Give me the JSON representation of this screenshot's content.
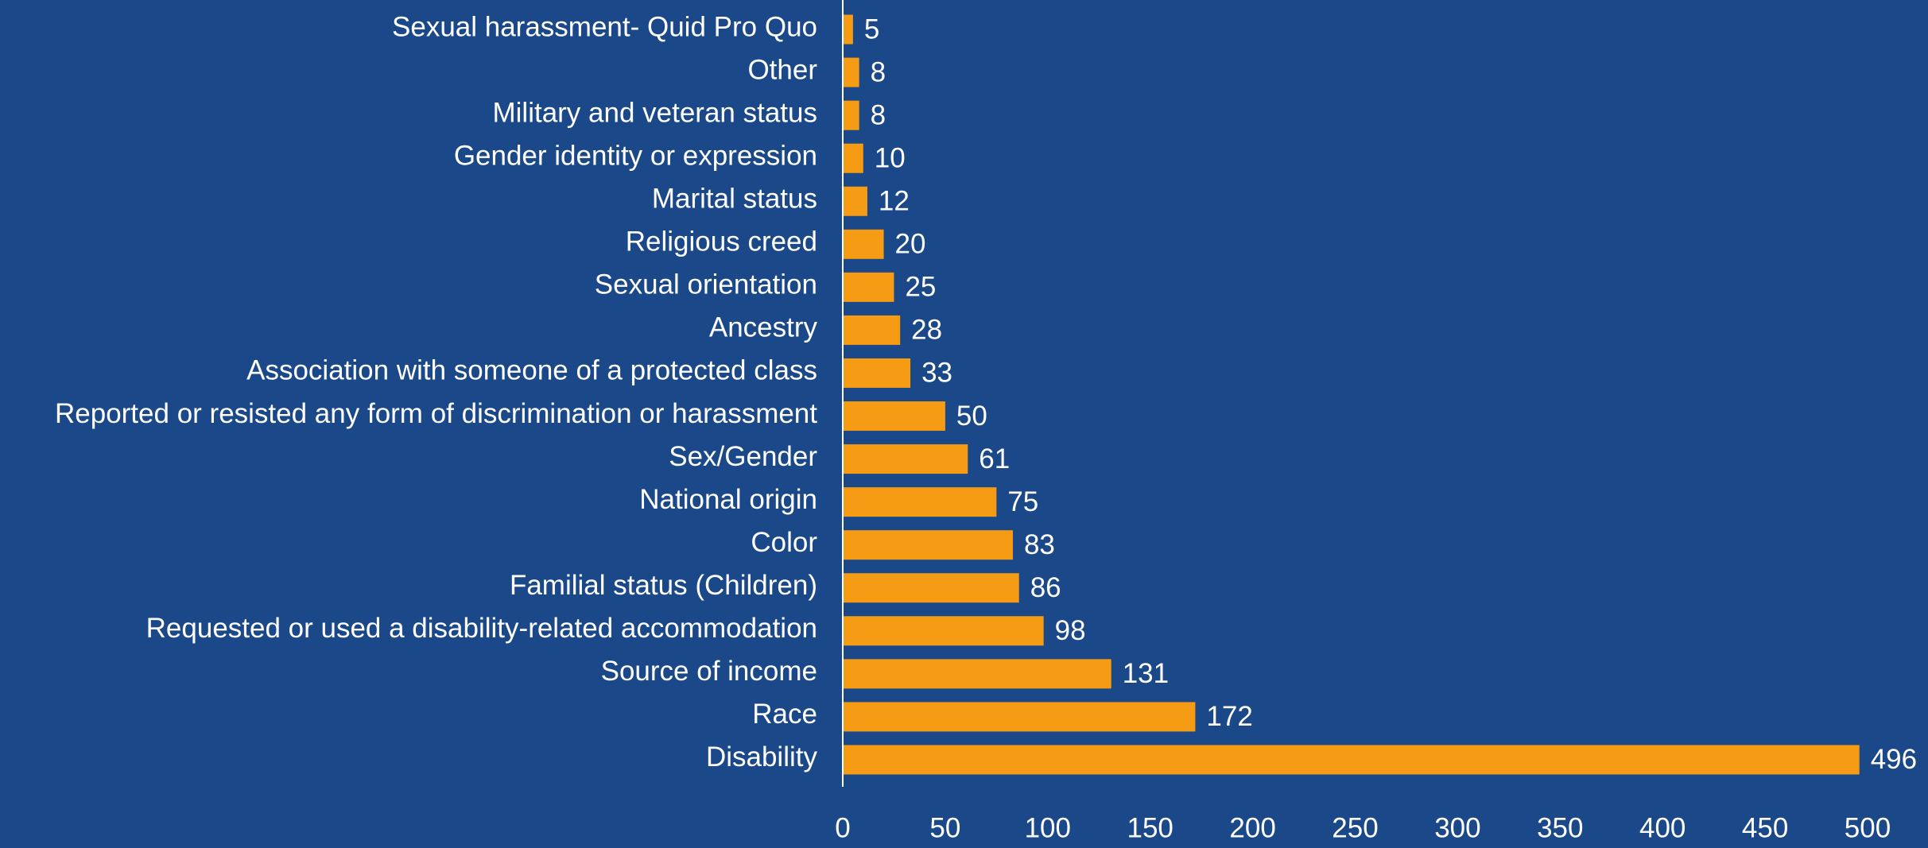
{
  "chart_data": {
    "type": "bar",
    "orientation": "horizontal",
    "categories": [
      "Sexual harassment- Quid Pro Quo",
      "Other",
      "Military and veteran status",
      "Gender identity or expression",
      "Marital status",
      "Religious creed",
      "Sexual orientation",
      "Ancestry",
      "Association with someone of a protected class",
      "Reported or resisted any form of discrimination or harassment",
      "Sex/Gender",
      "National origin",
      "Color",
      "Familial status (Children)",
      "Requested or used a disability-related accommodation",
      "Source of income",
      "Race",
      "Disability"
    ],
    "values": [
      5,
      8,
      8,
      10,
      12,
      20,
      25,
      28,
      33,
      50,
      61,
      75,
      83,
      86,
      98,
      131,
      172,
      496
    ],
    "color": "#f59c14",
    "xlim": [
      0,
      500
    ],
    "xticks": [
      0,
      50,
      100,
      150,
      200,
      250,
      300,
      350,
      400,
      450,
      500
    ],
    "grid": false
  }
}
